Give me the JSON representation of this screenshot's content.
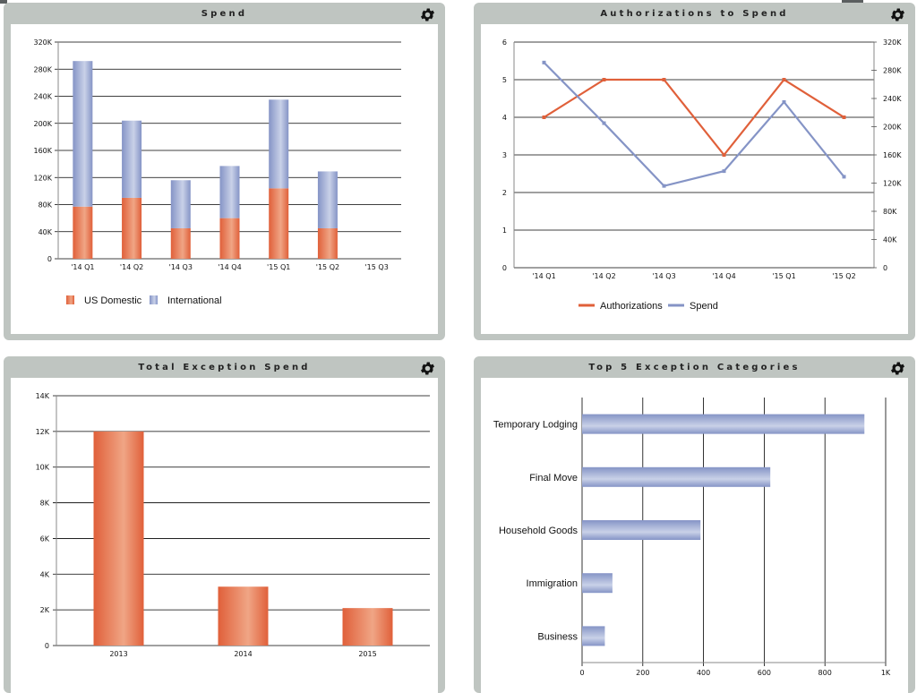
{
  "colors": {
    "orange": "#e0603a",
    "orange_light": "#f0a585",
    "blue": "#8594c6",
    "blue_light": "#c9d1e8",
    "grid": "#000000",
    "panel": "#bfc5c1"
  },
  "icons": {
    "settings": "gear-icon"
  },
  "chart_data": [
    {
      "type": "bar",
      "title": "Spend",
      "stacked": true,
      "categories": [
        "'14 Q1",
        "'14 Q2",
        "'14 Q3",
        "'14 Q4",
        "'15 Q1",
        "'15 Q2",
        "'15 Q3"
      ],
      "series": [
        {
          "name": "US Domestic",
          "values": [
            77000,
            90000,
            45000,
            60000,
            104000,
            45000,
            0
          ]
        },
        {
          "name": "International",
          "values": [
            215000,
            114000,
            71000,
            77000,
            131000,
            84000,
            0
          ]
        }
      ],
      "ylim": [
        0,
        320000
      ],
      "yticks": [
        0,
        40000,
        80000,
        120000,
        160000,
        200000,
        240000,
        280000,
        320000
      ],
      "ytick_labels": [
        "0",
        "40K",
        "80K",
        "120K",
        "160K",
        "200K",
        "240K",
        "280K",
        "320K"
      ],
      "legend": "bottom-left",
      "grid": true
    },
    {
      "type": "line",
      "title": "Authorizations to Spend",
      "categories": [
        "'14 Q1",
        "'14 Q2",
        "'14 Q3",
        "'14 Q4",
        "'15 Q1",
        "'15 Q2"
      ],
      "series": [
        {
          "name": "Authorizations",
          "axis": "left",
          "values": [
            4,
            5,
            5,
            3,
            5,
            4
          ]
        },
        {
          "name": "Spend",
          "axis": "right",
          "values": [
            291000,
            205000,
            116000,
            137000,
            235000,
            129000
          ]
        }
      ],
      "ylim_left": [
        0,
        6
      ],
      "yticks_left": [
        "0",
        "1",
        "2",
        "3",
        "4",
        "5",
        "6"
      ],
      "ylim_right": [
        0,
        320000
      ],
      "yticks_right": [
        "0",
        "40K",
        "80K",
        "120K",
        "160K",
        "200K",
        "240K",
        "280K",
        "320K"
      ],
      "legend": "bottom-center",
      "grid": true
    },
    {
      "type": "bar",
      "title": "Total Exception Spend",
      "categories": [
        "2013",
        "2014",
        "2015"
      ],
      "values": [
        12000,
        3300,
        2100
      ],
      "ylim": [
        0,
        14000
      ],
      "yticks": [
        0,
        2000,
        4000,
        6000,
        8000,
        10000,
        12000,
        14000
      ],
      "ytick_labels": [
        "0",
        "2K",
        "4K",
        "6K",
        "8K",
        "10K",
        "12K",
        "14K"
      ],
      "grid": true
    },
    {
      "type": "bar",
      "orientation": "horizontal",
      "title": "Top 5 Exception Categories",
      "categories": [
        "Temporary Lodging",
        "Final Move",
        "Household Goods",
        "Immigration",
        "Business"
      ],
      "values": [
        930,
        620,
        390,
        100,
        75
      ],
      "xlim": [
        0,
        1000
      ],
      "xticks": [
        0,
        200,
        400,
        600,
        800,
        1000
      ],
      "xtick_labels": [
        "0",
        "200",
        "400",
        "600",
        "800",
        "1K"
      ],
      "grid": true
    }
  ]
}
